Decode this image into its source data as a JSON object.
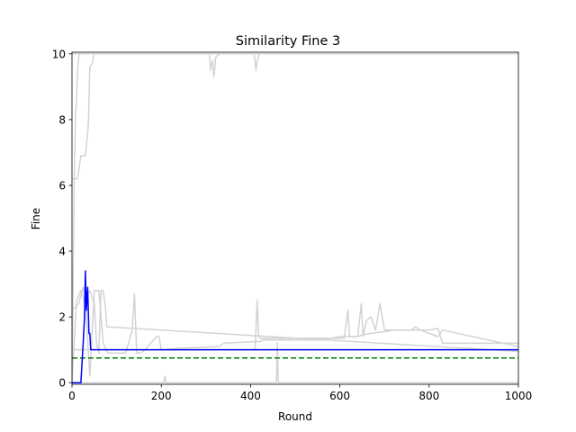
{
  "chart_data": {
    "type": "line",
    "title": "Similarity Fine 3",
    "xlabel": "Round",
    "ylabel": "Fine",
    "xlim": [
      0,
      1000
    ],
    "ylim": [
      -0.05,
      10.05
    ],
    "xticks": [
      0,
      200,
      400,
      600,
      800,
      1000
    ],
    "yticks": [
      0,
      2,
      4,
      6,
      8,
      10
    ],
    "grid": false,
    "legend": "none",
    "colors": {
      "background_series": "#d3d3d3",
      "highlight": "#0000ff",
      "threshold": "#008000",
      "axes": "#000000"
    },
    "threshold": {
      "y": 0.75,
      "style": "dashed"
    },
    "background_series": [
      {
        "x": [
          0,
          5,
          8,
          10,
          11,
          13,
          15,
          17,
          1000
        ],
        "y": [
          0,
          6.2,
          8.3,
          8.5,
          9.0,
          9.6,
          9.9,
          10,
          10
        ]
      },
      {
        "x": [
          0,
          12,
          20,
          30,
          35,
          37,
          40,
          45,
          48,
          50,
          1000
        ],
        "y": [
          6.2,
          6.2,
          6.9,
          6.9,
          7.6,
          8.0,
          9.6,
          9.7,
          9.9,
          10,
          10
        ]
      },
      {
        "x": [
          0,
          300,
          308,
          310,
          315,
          318,
          322,
          330,
          408,
          412,
          415,
          420,
          430,
          1000
        ],
        "y": [
          10,
          10,
          10,
          9.5,
          9.8,
          9.3,
          9.9,
          10,
          10,
          9.5,
          9.8,
          10,
          10,
          10
        ]
      },
      {
        "x": [
          0,
          10,
          20,
          30,
          40,
          50,
          60,
          70,
          80,
          100,
          120,
          135,
          140,
          145,
          150,
          160,
          190,
          195,
          200,
          250,
          330,
          340,
          420,
          430,
          500,
          560,
          580,
          600,
          640,
          650,
          670,
          700,
          720,
          760,
          800,
          820,
          830,
          1000
        ],
        "y": [
          0,
          2.5,
          2.8,
          2.4,
          0.2,
          2.8,
          2.8,
          1.2,
          0.9,
          0.9,
          0.9,
          1.6,
          2.7,
          0.9,
          0.9,
          0.95,
          1.4,
          1.4,
          1.0,
          1.05,
          1.1,
          1.2,
          1.25,
          1.3,
          1.3,
          1.3,
          1.35,
          1.4,
          1.4,
          1.45,
          1.5,
          1.55,
          1.6,
          1.6,
          1.6,
          1.65,
          1.2,
          1.2
        ]
      },
      {
        "x": [
          0,
          15,
          25,
          30,
          40,
          50,
          55,
          60,
          65,
          70,
          75,
          78,
          1000
        ],
        "y": [
          2.2,
          2.4,
          2.9,
          2.6,
          2.8,
          2.4,
          1.2,
          0.9,
          2.8,
          2.8,
          2.3,
          1.7,
          0.95
        ]
      },
      {
        "x": [
          0,
          410,
          415,
          418,
          422,
          500,
          520,
          610,
          618,
          622,
          640,
          648,
          652,
          660,
          670,
          680,
          690,
          700,
          760,
          770,
          780,
          820,
          830,
          1000
        ],
        "y": [
          1.0,
          1.0,
          2.5,
          1.4,
          1.35,
          1.35,
          1.35,
          1.35,
          2.2,
          1.4,
          1.4,
          2.4,
          1.4,
          1.9,
          2.0,
          1.6,
          2.4,
          1.6,
          1.6,
          1.7,
          1.6,
          1.4,
          1.6,
          1.1
        ]
      },
      {
        "x": [
          0,
          40,
          50,
          200,
          205,
          208,
          210,
          450,
          458,
          460,
          462,
          465,
          1000
        ],
        "y": [
          0,
          0,
          0,
          0,
          0,
          0.2,
          0,
          0,
          0,
          1.2,
          0,
          0,
          0
        ]
      }
    ],
    "highlight_series": {
      "x": [
        0,
        20,
        25,
        28,
        30,
        32,
        35,
        38,
        40,
        42,
        1000
      ],
      "y": [
        0,
        0,
        1.2,
        2.0,
        3.4,
        2.2,
        2.9,
        1.5,
        1.5,
        1.0,
        1.0
      ]
    }
  }
}
